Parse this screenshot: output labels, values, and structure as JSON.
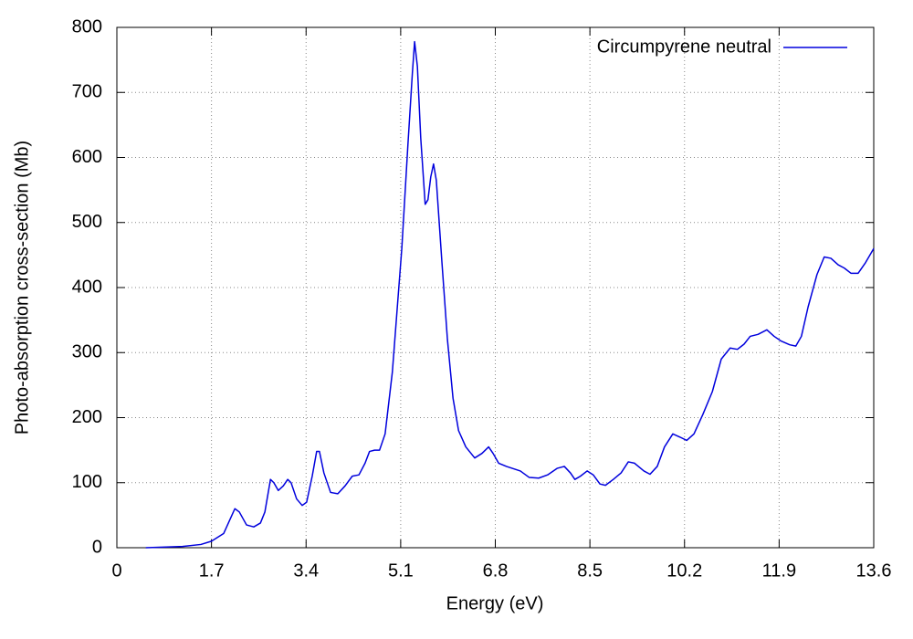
{
  "chart_data": {
    "type": "line",
    "x_label": "Energy (eV)",
    "y_label": "Photo-absorption cross-section (Mb)",
    "xlim": [
      0,
      13.6
    ],
    "ylim": [
      0,
      800
    ],
    "xticks": [
      0,
      1.7,
      3.4,
      5.1,
      6.8,
      8.5,
      10.2,
      11.9,
      13.6
    ],
    "yticks": [
      0,
      100,
      200,
      300,
      400,
      500,
      600,
      700,
      800
    ],
    "grid": true,
    "legend": "top-right",
    "x": [
      0.52,
      1.18,
      1.51,
      1.7,
      1.92,
      2.12,
      2.2,
      2.33,
      2.46,
      2.58,
      2.66,
      2.76,
      2.82,
      2.9,
      2.99,
      3.07,
      3.13,
      3.23,
      3.33,
      3.41,
      3.51,
      3.59,
      3.64,
      3.72,
      3.84,
      3.97,
      4.1,
      4.23,
      4.35,
      4.46,
      4.54,
      4.63,
      4.72,
      4.82,
      4.95,
      5.12,
      5.23,
      5.31,
      5.35,
      5.4,
      5.46,
      5.54,
      5.59,
      5.64,
      5.69,
      5.74,
      5.84,
      5.94,
      6.04,
      6.14,
      6.27,
      6.43,
      6.56,
      6.68,
      6.76,
      6.86,
      7.0,
      7.25,
      7.41,
      7.58,
      7.74,
      7.91,
      8.04,
      8.15,
      8.23,
      8.33,
      8.45,
      8.56,
      8.68,
      8.78,
      8.92,
      9.06,
      9.19,
      9.3,
      9.47,
      9.58,
      9.71,
      9.84,
      9.99,
      10.12,
      10.24,
      10.37,
      10.53,
      10.7,
      10.86,
      11.02,
      11.15,
      11.27,
      11.38,
      11.52,
      11.68,
      11.81,
      11.93,
      12.09,
      12.2,
      12.3,
      12.42,
      12.58,
      12.71,
      12.83,
      12.96,
      13.07,
      13.19,
      13.32,
      13.45,
      13.6
    ],
    "series": [
      {
        "name": "Circumpyrene neutral",
        "color": "#0000dd",
        "values": [
          0,
          2,
          5,
          10,
          22,
          60,
          55,
          35,
          32,
          38,
          55,
          105,
          100,
          88,
          95,
          105,
          100,
          75,
          65,
          70,
          110,
          148,
          148,
          115,
          85,
          83,
          95,
          110,
          112,
          130,
          148,
          150,
          150,
          175,
          270,
          460,
          620,
          730,
          778,
          740,
          630,
          528,
          535,
          570,
          590,
          565,
          440,
          320,
          230,
          180,
          155,
          138,
          145,
          155,
          145,
          130,
          125,
          118,
          108,
          107,
          112,
          122,
          125,
          115,
          105,
          110,
          118,
          112,
          98,
          96,
          105,
          115,
          132,
          130,
          118,
          113,
          125,
          155,
          175,
          170,
          165,
          175,
          205,
          240,
          290,
          307,
          305,
          313,
          325,
          328,
          335,
          325,
          318,
          312,
          310,
          325,
          370,
          420,
          447,
          445,
          435,
          430,
          422,
          422,
          438,
          460
        ]
      }
    ]
  }
}
